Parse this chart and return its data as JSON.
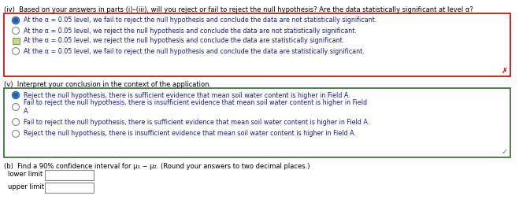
{
  "bg_color": "#ffffff",
  "section_iv_title": "(iv)  Based on your answers in parts (i)–(iii), will you reject or fail to reject the null hypothesis? Are the data statistically significant at level α?",
  "section_iv_options": [
    "At the α = 0.05 level, we fail to reject the null hypothesis and conclude the data are not statistically significant.",
    "At the α = 0.05 level, we reject the null hypothesis and conclude the data are not statistically significant.",
    "At the α = 0.05 level, we reject the null hypothesis and conclude the data are statistically significant.",
    "At the α = 0.05 level, we fail to reject the null hypothesis and conclude the data are statistically significant."
  ],
  "section_iv_box_color": "#cc0000",
  "section_iv_x_color": "#cc0000",
  "section_v_title": "(v)  Interpret your conclusion in the context of the application.",
  "section_v_options": [
    "Reject the null hypothesis, there is sufficient evidence that mean soil water content is higher in Field A.",
    "Fail to reject the null hypothesis, there is insufficient evidence that mean soil water content is higher in Field\nA.",
    "Fail to reject the null hypothesis, there is sufficient evidence that mean soil water content is higher in Field A.",
    "Reject the null hypothesis, there is insufficient evidence that mean soil water content is higher in Field A."
  ],
  "section_v_box_color": "#2d6a2d",
  "section_v_check_color": "#2d8a2d",
  "section_b_title": "(b)  Find a 90% confidence interval for μ₁ − μ₂. (Round your answers to two decimal places.)",
  "lower_limit_label": "lower limit",
  "upper_limit_label": "upper limit",
  "text_color": "#1a1a8c",
  "label_color": "#000000",
  "radio_selected_color": "#1a5fa8",
  "radio_unselected_color": "#888888",
  "checkbox_color": "#7a9a4a",
  "checkbox_fill": "#c8d890"
}
